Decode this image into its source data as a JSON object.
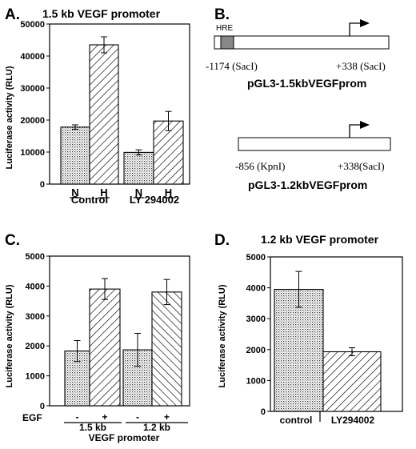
{
  "panels": {
    "A": {
      "letter": "A.",
      "title": "1.5 kb VEGF promoter",
      "ylabel": "Luciferase activity (RLU)",
      "group_labels": [
        "Control",
        "LY 294002"
      ]
    },
    "B": {
      "letter": "B.",
      "hre_label": "HRE",
      "construct1": {
        "left": "-1174 (SacI)",
        "right": "+338 (SacI)",
        "name": "pGL3-1.5kbVEGFprom"
      },
      "construct2": {
        "left": "-856  (KpnI)",
        "right": "+338(SacI)",
        "name": "pGL3-1.2kbVEGFprom"
      }
    },
    "C": {
      "letter": "C.",
      "ylabel": "Luciferase  activity  (RLU)",
      "row_label": "EGF",
      "group_labels": [
        "1.5 kb",
        "1.2 kb"
      ],
      "xlabel": "VEGF promoter"
    },
    "D": {
      "letter": "D.",
      "title": "1.2 kb VEGF promoter",
      "ylabel": "Luciferase  activity  (RLU)"
    }
  },
  "chart_data": [
    {
      "id": "A",
      "type": "bar",
      "title": "1.5 kb VEGF promoter",
      "ylabel": "Luciferase activity (RLU)",
      "ylim": [
        0,
        50000
      ],
      "yticks": [
        0,
        10000,
        20000,
        30000,
        40000,
        50000
      ],
      "categories": [
        "N",
        "H",
        "N",
        "H"
      ],
      "groups": [
        "Control",
        "LY 294002"
      ],
      "values": [
        17800,
        43500,
        9900,
        19700
      ],
      "errors": [
        700,
        2500,
        800,
        3000
      ],
      "patterns": [
        "dots",
        "hatch-up",
        "dots",
        "hatch-up"
      ]
    },
    {
      "id": "C",
      "type": "bar",
      "ylabel": "Luciferase  activity  (RLU)",
      "xlabel": "VEGF promoter",
      "ylim": [
        0,
        5000
      ],
      "yticks": [
        0,
        1000,
        2000,
        3000,
        4000,
        5000
      ],
      "categories": [
        "-",
        "+",
        "-",
        "+"
      ],
      "groups": [
        "1.5 kb",
        "1.2 kb"
      ],
      "values": [
        1830,
        3900,
        1870,
        3800
      ],
      "errors": [
        350,
        350,
        550,
        420
      ],
      "patterns": [
        "dots",
        "hatch-up",
        "dots",
        "hatch-down"
      ]
    },
    {
      "id": "D",
      "type": "bar",
      "title": "1.2 kb VEGF promoter",
      "ylabel": "Luciferase  activity  (RLU)",
      "ylim": [
        0,
        5000
      ],
      "yticks": [
        0,
        1000,
        2000,
        3000,
        4000,
        5000
      ],
      "categories": [
        "control",
        "LY294002"
      ],
      "values": [
        3950,
        1930
      ],
      "errors": [
        580,
        130
      ],
      "patterns": [
        "dots",
        "hatch-up"
      ]
    }
  ]
}
